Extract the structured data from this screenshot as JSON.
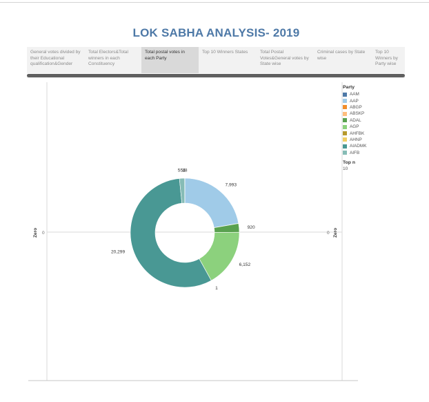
{
  "page": {
    "title": "LOK SABHA ANALYSIS- 2019"
  },
  "tabs": [
    {
      "label": "General votes divided by their Educational qualification&Gender"
    },
    {
      "label": "Total Electors&Total winners in each Constituency"
    },
    {
      "label": "Total postal votes in each Party",
      "active": true
    },
    {
      "label": "Top 10 Winners States"
    },
    {
      "label": "Total Postal Votes&General votes by State wise"
    },
    {
      "label": "Criminal cases by State wise"
    },
    {
      "label": "Top 10 Winners by Party wise"
    }
  ],
  "axes": {
    "left_label": "Zero",
    "left_tick": "0",
    "right_label": "Zero",
    "right_tick": "0"
  },
  "legend": {
    "title": "Party",
    "items": [
      {
        "label": "AAM",
        "color": "#4e79a7"
      },
      {
        "label": "AAP",
        "color": "#a0cbe8"
      },
      {
        "label": "ABGP",
        "color": "#f28e2b"
      },
      {
        "label": "ABSKP",
        "color": "#ffbe7d"
      },
      {
        "label": "ADAL",
        "color": "#59a14f"
      },
      {
        "label": "AGP",
        "color": "#8cd17d"
      },
      {
        "label": "AHFBK",
        "color": "#b6992d"
      },
      {
        "label": "AHNP",
        "color": "#f1ce63"
      },
      {
        "label": "AIADMK",
        "color": "#499894"
      },
      {
        "label": "AIFB",
        "color": "#86bcb6"
      }
    ]
  },
  "filter": {
    "title": "Top n",
    "value": "10"
  },
  "chart_data": {
    "type": "pie",
    "donut": true,
    "start_angle_deg": 0,
    "direction": "clockwise",
    "series": [
      {
        "name": "Postal votes",
        "slices": [
          {
            "party": "AAP",
            "value": 7993,
            "label": "7,993",
            "color": "#a0cbe8"
          },
          {
            "party": "ABGP",
            "value": 6,
            "label": "",
            "color": "#f28e2b"
          },
          {
            "party": "ABSKP",
            "value": 10,
            "label": "",
            "color": "#ffbe7d"
          },
          {
            "party": "ADAL",
            "value": 920,
            "label": "920",
            "color": "#59a14f"
          },
          {
            "party": "AGP",
            "value": 6152,
            "label": "6,152",
            "color": "#8cd17d"
          },
          {
            "party": "AHFBK",
            "value": 1,
            "label": "1",
            "color": "#b6992d"
          },
          {
            "party": "AIADMK",
            "value": 20299,
            "label": "20,299",
            "color": "#499894"
          },
          {
            "party": "AIFB",
            "value": 554,
            "label": "554",
            "color": "#86bcb6"
          },
          {
            "party": "AAM",
            "value": 18,
            "label": "18",
            "color": "#4e79a7"
          }
        ]
      }
    ]
  }
}
